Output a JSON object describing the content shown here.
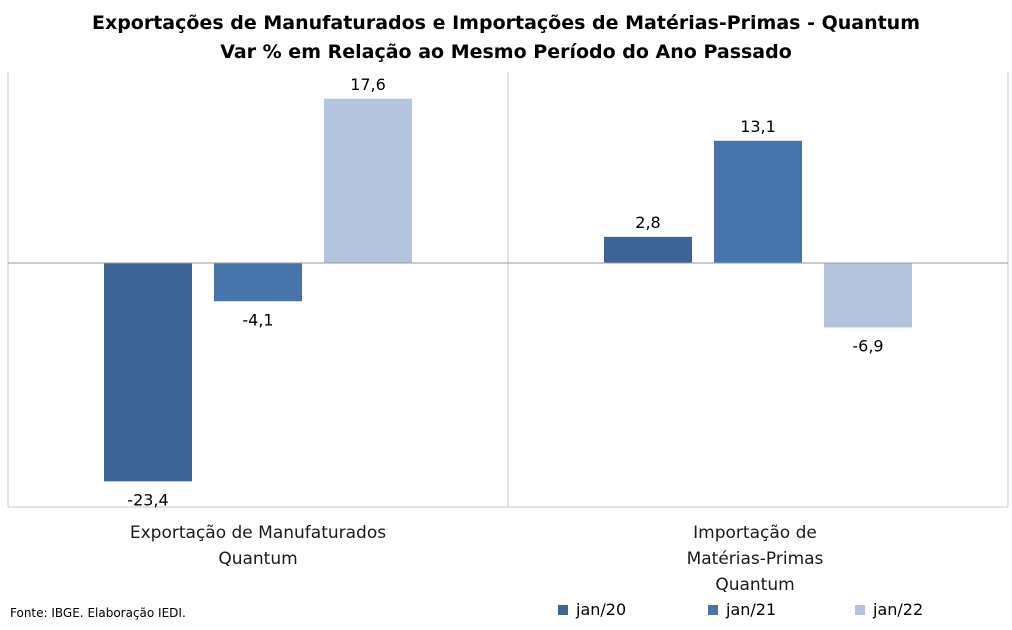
{
  "chart_data": {
    "type": "bar",
    "title": "Exportações de Manufaturados e Importações de Matérias-Primas - Quantum",
    "subtitle": "Var % em Relação ao Mesmo Período do Ano Passado",
    "categories": [
      [
        "Exportação de Manufaturados",
        "Quantum"
      ],
      [
        "Importação de",
        "Matérias-Primas",
        "Quantum"
      ]
    ],
    "series": [
      {
        "name": "jan/20",
        "color": "#3e6396",
        "values": [
          -23.4,
          2.8
        ],
        "labels": [
          "-23,4",
          "2,8"
        ]
      },
      {
        "name": "jan/21",
        "color": "#4674ab",
        "values": [
          -4.1,
          13.1
        ],
        "labels": [
          "-4,1",
          "13,1"
        ]
      },
      {
        "name": "jan/22",
        "color": "#b3c2dd",
        "values": [
          17.6,
          -6.9
        ],
        "labels": [
          "17,6",
          "-6,9"
        ]
      }
    ],
    "ylim": [
      -26,
      20
    ],
    "grid": false,
    "legend_position": "bottom"
  },
  "source": "Fonte: IBGE. Elaboração IEDI."
}
